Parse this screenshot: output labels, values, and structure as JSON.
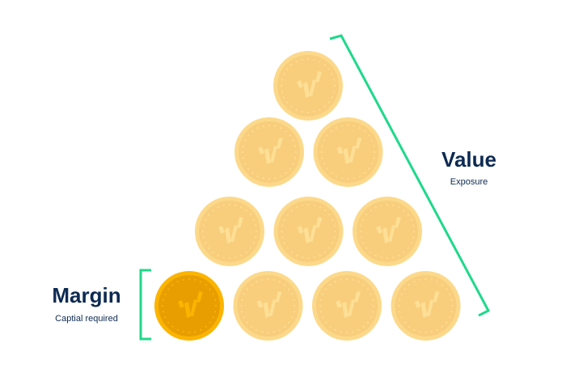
{
  "margin": {
    "title": "Margin",
    "subtitle": "Captial required"
  },
  "value": {
    "title": "Value",
    "subtitle": "Exposure"
  },
  "coins": {
    "rows": [
      1,
      2,
      3,
      4
    ],
    "highlighted": "bottom-left",
    "icon": "checkmark-logo-icon"
  },
  "colors": {
    "bracket": "#1ed98a",
    "coin_pale_outer": "#fcd98a",
    "coin_pale_inner": "#f8cd7c",
    "coin_pale_mark": "#fddf95",
    "coin_active_outer": "#fbb400",
    "coin_active_inner": "#e89e00",
    "coin_active_mark": "#fbb400",
    "text": "#0d2a52"
  }
}
